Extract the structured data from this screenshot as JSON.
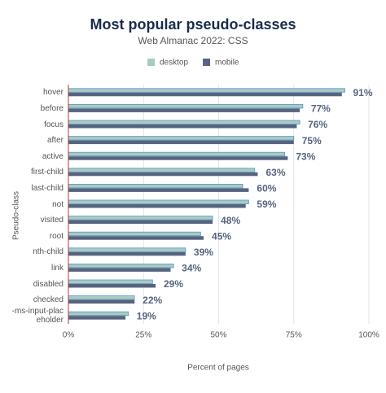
{
  "chart_data": {
    "type": "bar",
    "orientation": "horizontal",
    "title": "Most popular pseudo-classes",
    "subtitle": "Web Almanac 2022: CSS",
    "x_label": "Percent of pages",
    "y_label": "Pseudo-class",
    "categories": [
      "hover",
      "before",
      "focus",
      "after",
      "active",
      "first-child",
      "last-child",
      "not",
      "visited",
      "root",
      "nth-child",
      "link",
      "disabled",
      "checked",
      "-ms-input-placeholder"
    ],
    "series": [
      {
        "name": "desktop",
        "color": "#a8cdbd",
        "values": [
          92,
          78,
          77,
          75,
          72,
          62,
          58,
          60,
          48,
          44,
          39,
          35,
          28,
          22,
          20
        ]
      },
      {
        "name": "mobile",
        "color": "#56647f",
        "values": [
          91,
          77,
          76,
          75,
          73,
          63,
          60,
          59,
          48,
          45,
          39,
          34,
          29,
          22,
          19
        ],
        "value_labels": [
          "91%",
          "77%",
          "76%",
          "75%",
          "73%",
          "63%",
          "60%",
          "59%",
          "48%",
          "45%",
          "39%",
          "34%",
          "29%",
          "22%",
          "19%"
        ]
      }
    ],
    "xlim": [
      0,
      100
    ],
    "xticks": [
      {
        "value": 0,
        "label": "0%"
      },
      {
        "value": 25,
        "label": "25%"
      },
      {
        "value": 50,
        "label": "50%"
      },
      {
        "value": 75,
        "label": "75%"
      },
      {
        "value": 100,
        "label": "100%"
      }
    ],
    "grid": true,
    "legend": "top"
  }
}
